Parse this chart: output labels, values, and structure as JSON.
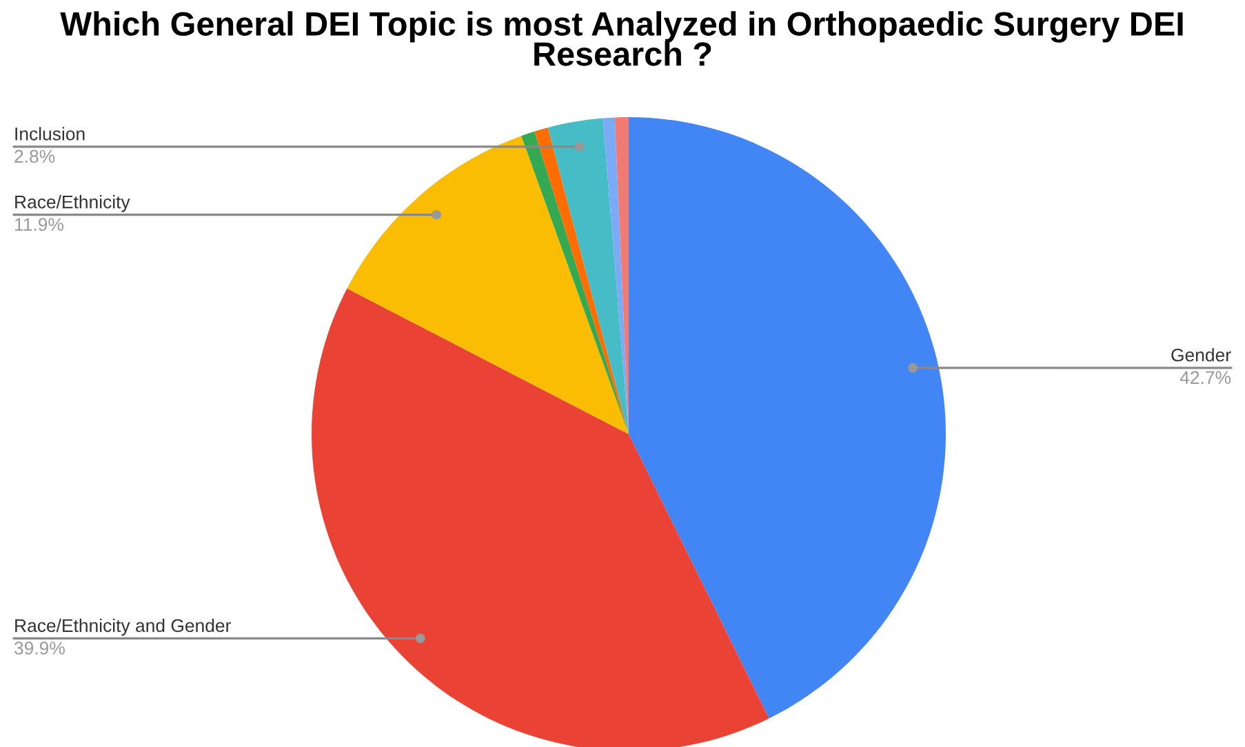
{
  "chart_data": {
    "type": "pie",
    "title": "Which General DEI Topic is most Analyzed in Orthopaedic Surgery DEI Research ?",
    "categories": [
      "Gender",
      "Race/Ethnicity and Gender",
      "Race/Ethnicity",
      null,
      null,
      "Inclusion",
      null,
      null
    ],
    "values": [
      42.7,
      39.9,
      11.9,
      0.7,
      0.7,
      2.8,
      0.6,
      0.7
    ],
    "value_labels": [
      "42.7%",
      "39.9%",
      "11.9%",
      null,
      null,
      "2.8%",
      null,
      null
    ],
    "colors": [
      "#4285f4",
      "#ea4335",
      "#fbbc04",
      "#34a853",
      "#ff6d01",
      "#46bdc6",
      "#7baaf7",
      "#f07b72"
    ]
  }
}
